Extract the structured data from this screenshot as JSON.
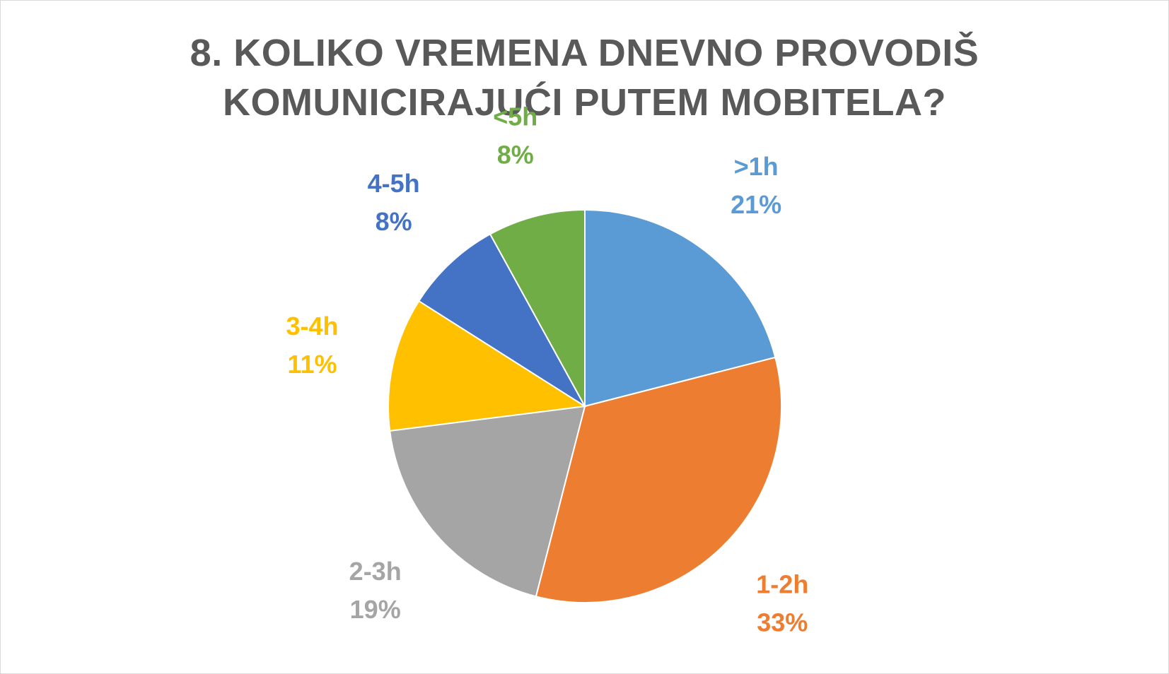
{
  "chart_data": {
    "type": "pie",
    "title_lines": [
      "8. KOLIKO VREMENA DNEVNO PROVODIŠ",
      "KOMUNICIRAJUĆI PUTEM MOBITELA?"
    ],
    "categories": [
      ">1h",
      "1-2h",
      "2-3h",
      "3-4h",
      "4-5h",
      "<5h"
    ],
    "values": [
      21,
      33,
      19,
      11,
      8,
      8
    ],
    "value_labels": [
      "21%",
      "33%",
      "19%",
      "11%",
      "8%",
      "8%"
    ],
    "colors": [
      "#5B9BD5",
      "#ED7D31",
      "#A5A5A5",
      "#FFC000",
      "#4472C4",
      "#70AD47"
    ],
    "start_angle_deg": 0,
    "direction": "clockwise",
    "legend": "none",
    "data_labels": "outside"
  }
}
